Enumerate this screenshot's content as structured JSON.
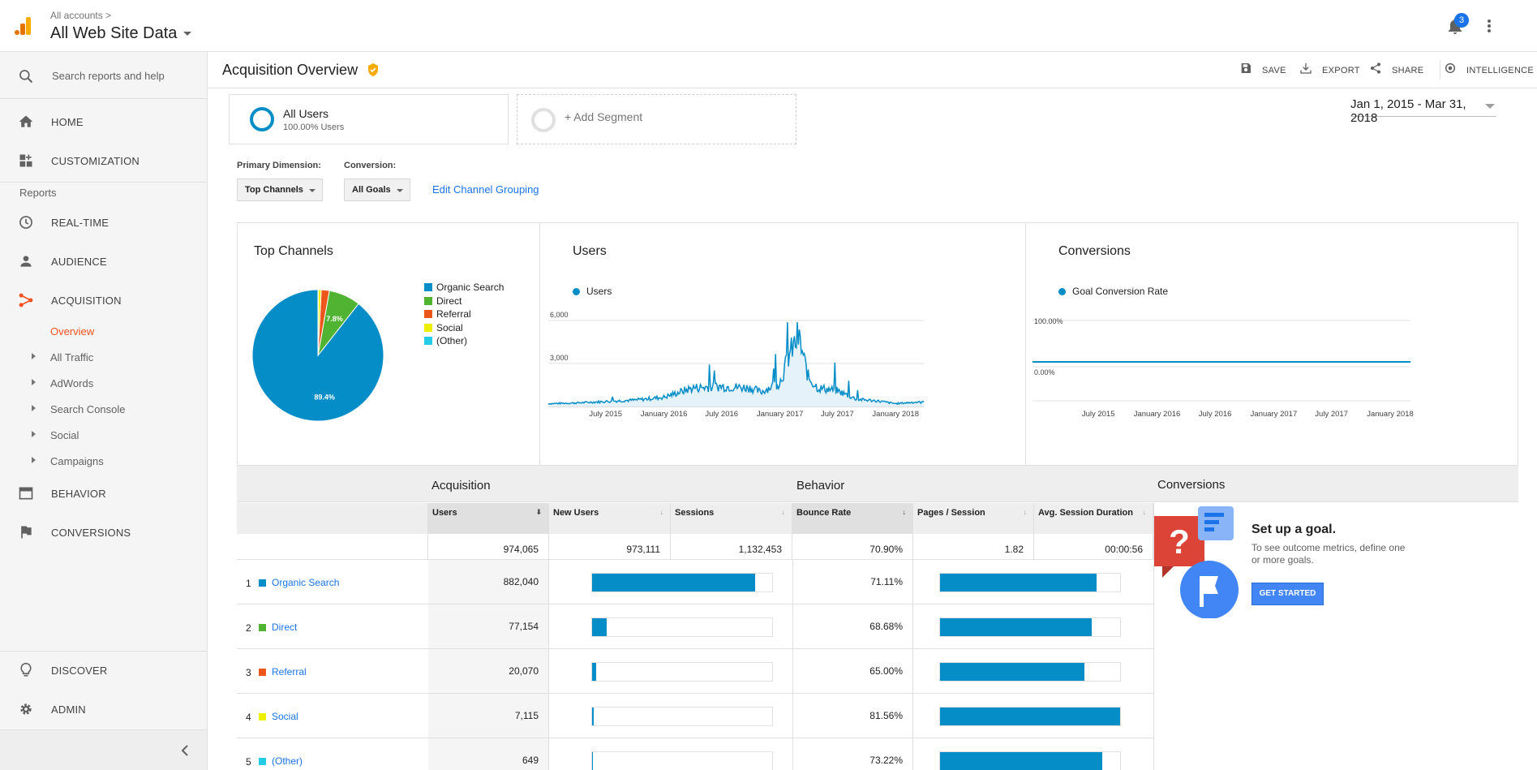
{
  "topbar": {
    "crumb": "All accounts",
    "account": "All Web Site Data",
    "notif_count": "3"
  },
  "sidebar": {
    "search": "Search reports and help",
    "home": "HOME",
    "customization": "CUSTOMIZATION",
    "reports_label": "Reports",
    "realtime": "REAL-TIME",
    "audience": "AUDIENCE",
    "acquisition": "ACQUISITION",
    "acq_sub": [
      "Overview",
      "All Traffic",
      "AdWords",
      "Search Console",
      "Social",
      "Campaigns"
    ],
    "behavior": "BEHAVIOR",
    "conversions": "CONVERSIONS",
    "discover": "DISCOVER",
    "admin": "ADMIN"
  },
  "header": {
    "title": "Acquisition Overview",
    "save": "SAVE",
    "export": "EXPORT",
    "share": "SHARE",
    "intelligence": "INTELLIGENCE"
  },
  "segments": {
    "all_users": "All Users",
    "all_users_sub": "100.00% Users",
    "add": "+ Add Segment"
  },
  "date_range": "Jan 1, 2015 - Mar 31, 2018",
  "controls": {
    "primary_dim_label": "Primary Dimension:",
    "primary_dim_value": "Top Channels",
    "conversion_label": "Conversion:",
    "conversion_value": "All Goals",
    "edit_grouping": "Edit Channel Grouping"
  },
  "colors": {
    "organic": "#058dc7",
    "direct": "#50b432",
    "referral": "#ed561b",
    "social": "#edef00",
    "other": "#24cbe5",
    "accent": "#f4511e"
  },
  "chart_data": [
    {
      "type": "pie",
      "title": "Top Channels",
      "categories": [
        "Organic Search",
        "Direct",
        "Referral",
        "Social",
        "(Other)"
      ],
      "values": [
        89.4,
        7.8,
        2.0,
        0.7,
        0.1
      ],
      "labels_shown": [
        "89.4%",
        "7.8%"
      ],
      "legend": "right"
    },
    {
      "type": "area",
      "title": "Users",
      "series": [
        {
          "name": "Users"
        }
      ],
      "x_ticks": [
        "July 2015",
        "January 2016",
        "July 2016",
        "January 2017",
        "July 2017",
        "January 2018"
      ],
      "y_ticks": [
        "6,000",
        "3,000"
      ],
      "ylim": [
        0,
        6000
      ],
      "x": [
        "2015-01",
        "2015-04",
        "2015-07",
        "2015-10",
        "2016-01",
        "2016-04",
        "2016-07",
        "2016-10",
        "2016-11",
        "2017-01",
        "2017-02",
        "2017-03",
        "2017-04",
        "2017-05",
        "2017-07",
        "2017-09",
        "2017-11",
        "2018-01",
        "2018-03"
      ],
      "values": [
        200,
        250,
        350,
        450,
        650,
        1300,
        1400,
        1300,
        1000,
        1700,
        3700,
        4800,
        2000,
        1300,
        1100,
        500,
        400,
        200,
        300
      ]
    },
    {
      "type": "line",
      "title": "Conversions",
      "series": [
        {
          "name": "Goal Conversion Rate"
        }
      ],
      "x_ticks": [
        "July 2015",
        "January 2016",
        "July 2016",
        "January 2017",
        "July 2017",
        "January 2018"
      ],
      "y_ticks": [
        "100.00%",
        "0.00%"
      ],
      "ylim": [
        0,
        100
      ],
      "values": [
        0,
        0
      ]
    }
  ],
  "table": {
    "group_acquisition": "Acquisition",
    "group_behavior": "Behavior",
    "group_conversions": "Conversions",
    "cols": [
      "Users",
      "New Users",
      "Sessions",
      "Bounce Rate",
      "Pages / Session",
      "Avg. Session Duration"
    ],
    "totals": [
      "974,065",
      "973,111",
      "1,132,453",
      "70.90%",
      "1.82",
      "00:00:56"
    ],
    "rows": [
      {
        "num": "1",
        "name": "Organic Search",
        "users": "882,040",
        "bounce": "71.11%",
        "users_share": 0.906,
        "bounce_share": 0.87
      },
      {
        "num": "2",
        "name": "Direct",
        "users": "77,154",
        "bounce": "68.68%",
        "users_share": 0.079,
        "bounce_share": 0.84
      },
      {
        "num": "3",
        "name": "Referral",
        "users": "20,070",
        "bounce": "65.00%",
        "users_share": 0.021,
        "bounce_share": 0.8
      },
      {
        "num": "4",
        "name": "Social",
        "users": "7,115",
        "bounce": "81.56%",
        "users_share": 0.007,
        "bounce_share": 1.0
      },
      {
        "num": "5",
        "name": "(Other)",
        "users": "649",
        "bounce": "73.22%",
        "users_share": 0.001,
        "bounce_share": 0.9
      }
    ]
  },
  "goal": {
    "title": "Set up a goal.",
    "desc": "To see outcome metrics, define one or more goals.",
    "button": "GET STARTED"
  }
}
